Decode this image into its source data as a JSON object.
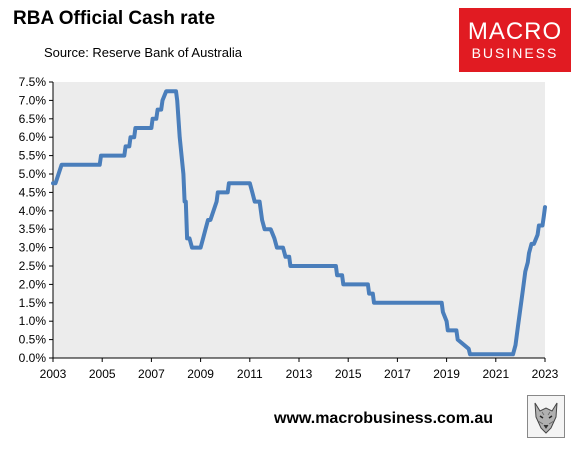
{
  "header": {
    "title": "RBA Official Cash rate",
    "subtitle": "Source: Reserve Bank of Australia"
  },
  "logo": {
    "line1": "MACRO",
    "line2": "BUSINESS",
    "color": "#e11b22"
  },
  "footer": {
    "website": "www.macrobusiness.com.au",
    "emblem_icon": "wolf-emblem-icon"
  },
  "chart_data": {
    "type": "line",
    "title": "RBA Official Cash rate",
    "subtitle": "Source: Reserve Bank of Australia",
    "xlabel": "",
    "ylabel": "",
    "xlim": [
      2003,
      2023
    ],
    "ylim": [
      0,
      7.5
    ],
    "y_ticks": [
      "0.0%",
      "0.5%",
      "1.0%",
      "1.5%",
      "2.0%",
      "2.5%",
      "3.0%",
      "3.5%",
      "4.0%",
      "4.5%",
      "5.0%",
      "5.5%",
      "6.0%",
      "6.5%",
      "7.0%",
      "7.5%"
    ],
    "x_ticks": [
      "2003",
      "2005",
      "2007",
      "2009",
      "2011",
      "2013",
      "2015",
      "2017",
      "2019",
      "2021",
      "2023"
    ],
    "grid": false,
    "plot_background": "#ececec",
    "line_color": "#4a7ebb",
    "series": [
      {
        "x": [
          2003.0,
          2003.1,
          2003.35,
          2003.4,
          2004.9,
          2004.95,
          2005.9,
          2005.95,
          2006.1,
          2006.15,
          2006.3,
          2006.35,
          2007.0,
          2007.05,
          2007.2,
          2007.25,
          2007.4,
          2007.45,
          2007.6,
          2007.65,
          2008.0,
          2008.05,
          2008.15,
          2008.3,
          2008.35,
          2008.4,
          2008.45,
          2008.55,
          2008.65,
          2008.7,
          2009.0,
          2009.1,
          2009.2,
          2009.3,
          2009.4,
          2009.65,
          2009.7,
          2010.1,
          2010.15,
          2011.0,
          2011.1,
          2011.2,
          2011.4,
          2011.5,
          2011.6,
          2011.85,
          2012.0,
          2012.1,
          2012.35,
          2012.45,
          2012.6,
          2012.65,
          2014.5,
          2014.55,
          2014.75,
          2014.8,
          2015.8,
          2015.85,
          2016.0,
          2016.05,
          2018.8,
          2018.85,
          2019.0,
          2019.05,
          2019.4,
          2019.45,
          2019.9,
          2019.95,
          2021.7,
          2021.8,
          2021.9,
          2022.0,
          2022.1,
          2022.2,
          2022.3,
          2022.35,
          2022.45,
          2022.55,
          2022.7,
          2022.75,
          2022.9,
          2022.95,
          2023.0
        ],
        "y": [
          4.75,
          4.75,
          5.25,
          5.25,
          5.25,
          5.5,
          5.5,
          5.75,
          5.75,
          6.0,
          6.0,
          6.25,
          6.25,
          6.5,
          6.5,
          6.75,
          6.75,
          7.0,
          7.25,
          7.25,
          7.25,
          7.0,
          6.0,
          5.0,
          4.25,
          4.25,
          3.25,
          3.25,
          3.0,
          3.0,
          3.0,
          3.25,
          3.5,
          3.75,
          3.75,
          4.25,
          4.5,
          4.5,
          4.75,
          4.75,
          4.5,
          4.25,
          4.25,
          3.75,
          3.5,
          3.5,
          3.25,
          3.0,
          3.0,
          2.75,
          2.75,
          2.5,
          2.5,
          2.25,
          2.25,
          2.0,
          2.0,
          1.75,
          1.75,
          1.5,
          1.5,
          1.25,
          1.0,
          0.75,
          0.75,
          0.5,
          0.25,
          0.1,
          0.1,
          0.35,
          0.85,
          1.35,
          1.85,
          2.35,
          2.6,
          2.85,
          3.1,
          3.1,
          3.35,
          3.6,
          3.6,
          3.85,
          4.1
        ]
      }
    ]
  }
}
